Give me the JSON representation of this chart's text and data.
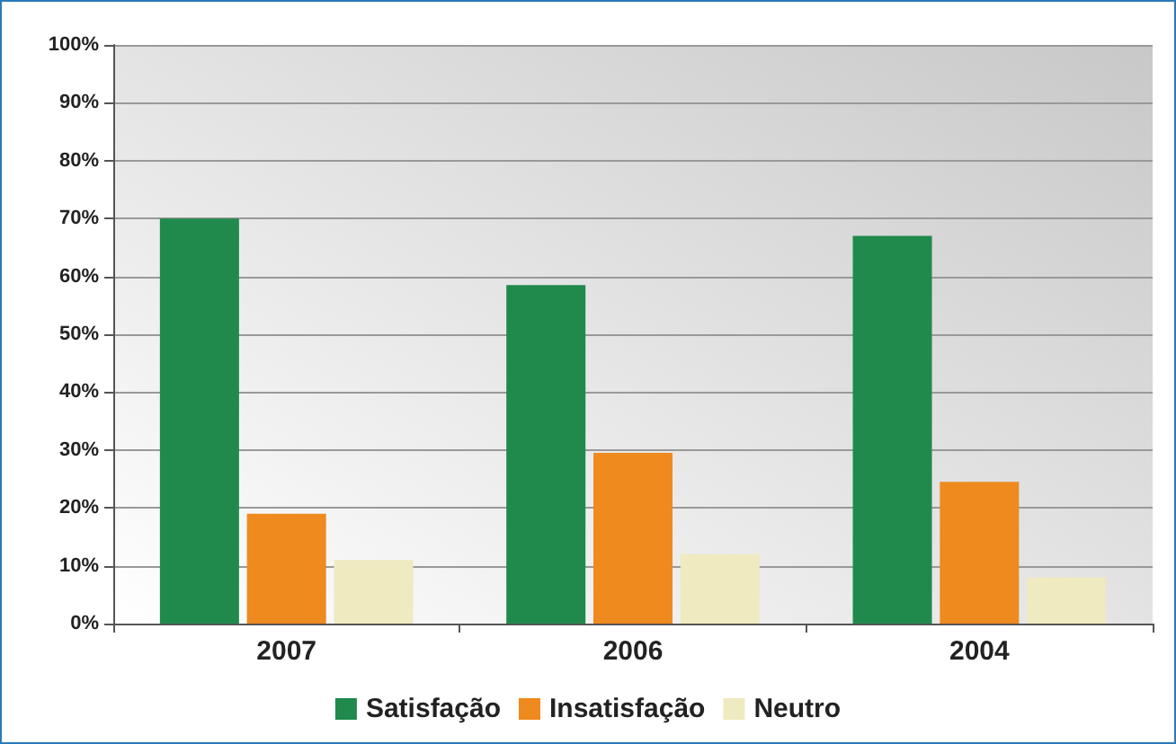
{
  "chart_data": {
    "type": "bar",
    "categories": [
      "2007",
      "2006",
      "2004"
    ],
    "series": [
      {
        "name": "Satisfação",
        "color": "#1f8a4c",
        "values": [
          70,
          58.5,
          67
        ]
      },
      {
        "name": "Insatisfação",
        "color": "#ee8a1e",
        "values": [
          19,
          29.5,
          24.5
        ]
      },
      {
        "name": "Neutro",
        "color": "#efeac0",
        "values": [
          11,
          12,
          8
        ]
      }
    ],
    "ylim": [
      0,
      100
    ],
    "yticks": [
      {
        "value": 0,
        "label": "0%"
      },
      {
        "value": 10,
        "label": "10%"
      },
      {
        "value": 20,
        "label": "20%"
      },
      {
        "value": 30,
        "label": "30%"
      },
      {
        "value": 40,
        "label": "40%"
      },
      {
        "value": 50,
        "label": "50%"
      },
      {
        "value": 60,
        "label": "60%"
      },
      {
        "value": 70,
        "label": "70%"
      },
      {
        "value": 80,
        "label": "80%"
      },
      {
        "value": 90,
        "label": "90%"
      },
      {
        "value": 100,
        "label": "100%"
      }
    ],
    "grid": "y",
    "legend": "bottom"
  }
}
